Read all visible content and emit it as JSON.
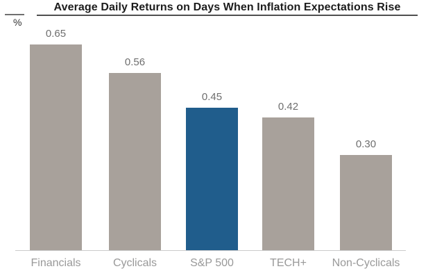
{
  "chart_data": {
    "type": "bar",
    "title": "Average Daily Returns on Days When Inflation Expectations Rise",
    "ylabel": "%",
    "xlabel": "",
    "categories": [
      "Financials",
      "Cyclicals",
      "S&P 500",
      "TECH+",
      "Non-Cyclicals"
    ],
    "values": [
      0.65,
      0.56,
      0.45,
      0.42,
      0.3
    ],
    "value_labels": [
      "0.65",
      "0.56",
      "0.45",
      "0.42",
      "0.30"
    ],
    "highlight_index": 2,
    "highlight_category": "S&P 500",
    "bar_color": "#a8a19b",
    "highlight_color": "#205d8c",
    "value_label_color": "#6e6e6e",
    "category_label_color": "#999999",
    "baseline_color": "#cbcbcb",
    "ylim": [
      0,
      0.78
    ],
    "grid": false,
    "legend": false
  }
}
